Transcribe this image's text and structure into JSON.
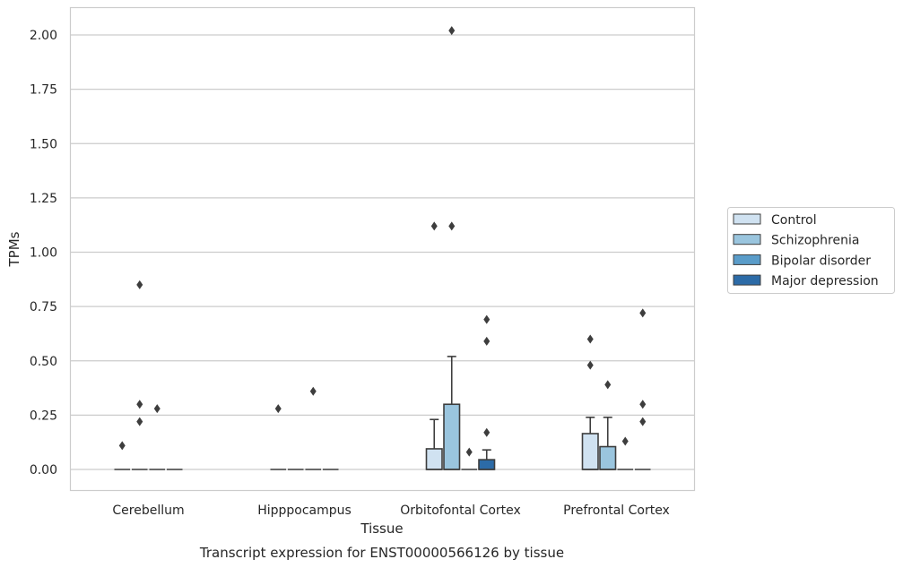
{
  "chart_data": {
    "type": "box",
    "title": "",
    "caption": "Transcript expression for ENST00000566126 by tissue",
    "xlabel": "Tissue",
    "ylabel": "TPMs",
    "ylim": [
      -0.1,
      2.12
    ],
    "yticks": [
      "0.00",
      "0.25",
      "0.50",
      "0.75",
      "1.00",
      "1.25",
      "1.50",
      "1.75",
      "2.00"
    ],
    "grid": "horizontal",
    "legend_position": "right",
    "categories": [
      "Cerebellum",
      "Hipppocampus",
      "Orbitofontal Cortex",
      "Prefrontal Cortex"
    ],
    "series": [
      {
        "name": "Control",
        "color": "#d0e2f1",
        "boxes": [
          {
            "q1": 0,
            "median": 0,
            "q3": 0,
            "whisker_low": 0,
            "whisker_high": 0,
            "outliers": [
              0.11
            ]
          },
          {
            "q1": 0,
            "median": 0,
            "q3": 0,
            "whisker_low": 0,
            "whisker_high": 0,
            "outliers": [
              0.28
            ]
          },
          {
            "q1": 0,
            "median": 0,
            "q3": 0.095,
            "whisker_low": 0,
            "whisker_high": 0.23,
            "outliers": [
              1.12
            ]
          },
          {
            "q1": 0,
            "median": 0,
            "q3": 0.165,
            "whisker_low": 0,
            "whisker_high": 0.24,
            "outliers": [
              0.48,
              0.6
            ]
          }
        ]
      },
      {
        "name": "Schizophrenia",
        "color": "#9ac5de",
        "boxes": [
          {
            "q1": 0,
            "median": 0,
            "q3": 0,
            "whisker_low": 0,
            "whisker_high": 0,
            "outliers": [
              0.22,
              0.3,
              0.85
            ]
          },
          {
            "q1": 0,
            "median": 0,
            "q3": 0,
            "whisker_low": 0,
            "whisker_high": 0,
            "outliers": []
          },
          {
            "q1": 0,
            "median": 0,
            "q3": 0.3,
            "whisker_low": 0,
            "whisker_high": 0.52,
            "outliers": [
              1.12,
              2.02
            ]
          },
          {
            "q1": 0,
            "median": 0,
            "q3": 0.105,
            "whisker_low": 0,
            "whisker_high": 0.24,
            "outliers": [
              0.39
            ]
          }
        ]
      },
      {
        "name": "Bipolar disorder",
        "color": "#5a9cc9",
        "boxes": [
          {
            "q1": 0,
            "median": 0,
            "q3": 0,
            "whisker_low": 0,
            "whisker_high": 0,
            "outliers": [
              0.28
            ]
          },
          {
            "q1": 0,
            "median": 0,
            "q3": 0,
            "whisker_low": 0,
            "whisker_high": 0,
            "outliers": [
              0.36
            ]
          },
          {
            "q1": 0,
            "median": 0,
            "q3": 0,
            "whisker_low": 0,
            "whisker_high": 0,
            "outliers": [
              0.08
            ]
          },
          {
            "q1": 0,
            "median": 0,
            "q3": 0,
            "whisker_low": 0,
            "whisker_high": 0,
            "outliers": [
              0.13
            ]
          }
        ]
      },
      {
        "name": "Major depression",
        "color": "#2c6ba7",
        "boxes": [
          {
            "q1": 0,
            "median": 0,
            "q3": 0,
            "whisker_low": 0,
            "whisker_high": 0,
            "outliers": []
          },
          {
            "q1": 0,
            "median": 0,
            "q3": 0,
            "whisker_low": 0,
            "whisker_high": 0,
            "outliers": []
          },
          {
            "q1": 0,
            "median": 0,
            "q3": 0.045,
            "whisker_low": 0,
            "whisker_high": 0.09,
            "outliers": [
              0.17,
              0.59,
              0.69
            ]
          },
          {
            "q1": 0,
            "median": 0,
            "q3": 0,
            "whisker_low": 0,
            "whisker_high": 0,
            "outliers": [
              0.22,
              0.3,
              0.72
            ]
          }
        ]
      }
    ]
  }
}
